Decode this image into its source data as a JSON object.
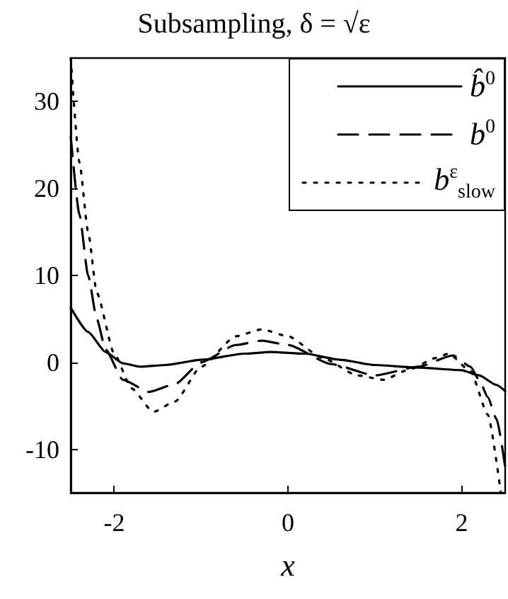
{
  "chart_data": {
    "type": "line",
    "title": "Subsampling, δ = √ε",
    "xlabel": "x",
    "xlim": [
      -2.5,
      2.5
    ],
    "xticks": [
      -2,
      0,
      2
    ],
    "ylim": [
      -15,
      35
    ],
    "yticks": [
      -10,
      0,
      10,
      20,
      30
    ],
    "grid": false,
    "legend": "top right",
    "marker": "none",
    "series": [
      {
        "name": "b̂$^{0}$",
        "color": "#000000",
        "line_style": "solid",
        "x": [
          -2.5,
          -2.3,
          -2.1,
          -1.9,
          -1.7,
          -1.4,
          -1.0,
          -0.5,
          -0.2,
          0.2,
          0.6,
          1.0,
          1.5,
          2.0,
          2.2,
          2.4,
          2.5
        ],
        "values": [
          6.3,
          3.5,
          1.2,
          -0.1,
          -0.5,
          -0.3,
          0.3,
          1.0,
          1.2,
          1.0,
          0.3,
          -0.3,
          -0.6,
          -0.9,
          -1.5,
          -2.6,
          -3.3
        ]
      },
      {
        "name": "b$^{0}$",
        "color": "#000000",
        "line_style": "dashed",
        "x": [
          -2.5,
          -2.4,
          -2.3,
          -2.2,
          -2.1,
          -1.9,
          -1.6,
          -1.3,
          -1.0,
          -0.6,
          -0.3,
          0.0,
          0.5,
          1.0,
          1.5,
          1.9,
          2.1,
          2.2,
          2.3,
          2.4,
          2.5
        ],
        "values": [
          26,
          17,
          10,
          5,
          1.5,
          -2,
          -3.4,
          -2.5,
          0,
          2,
          2.5,
          2,
          -0.2,
          -1.5,
          -0.5,
          0.8,
          -0.5,
          -2,
          -4,
          -6.5,
          -12
        ]
      },
      {
        "name": "b$^{ε}$$_{slow}$",
        "color": "#000000",
        "line_style": "dotted",
        "x": [
          -2.5,
          -2.4,
          -2.3,
          -2.2,
          -2.0,
          -1.8,
          -1.55,
          -1.3,
          -1.0,
          -0.6,
          -0.3,
          0.0,
          0.4,
          0.8,
          1.1,
          1.4,
          1.7,
          1.85,
          2.1,
          2.3,
          2.45
        ],
        "values": [
          35,
          23,
          15,
          8,
          1,
          -3,
          -5.7,
          -4.5,
          -0.5,
          3,
          3.8,
          3,
          0.5,
          -1.5,
          -2,
          -0.8,
          0.5,
          1,
          -1,
          -6,
          -15
        ]
      }
    ]
  }
}
